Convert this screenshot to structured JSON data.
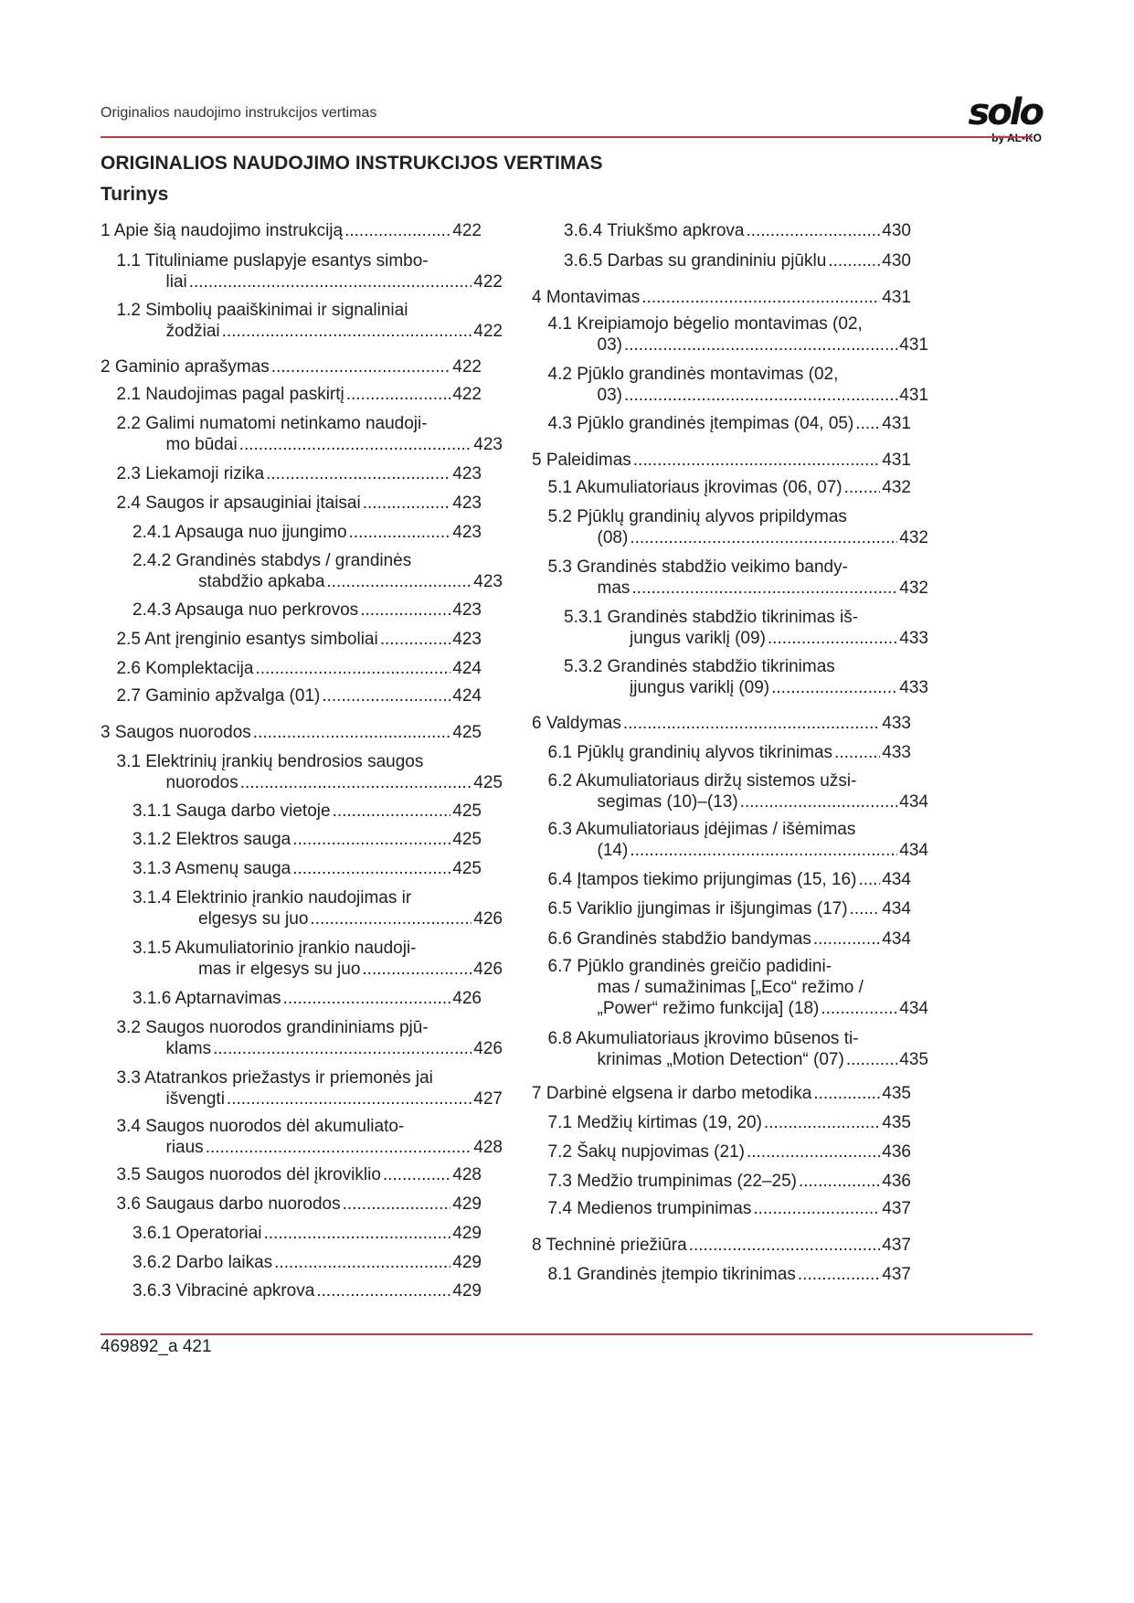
{
  "header": {
    "running_title": "Originalios naudojimo instrukcijos vertimas",
    "logo_text": "solo",
    "logo_subtext": "by AL-KO",
    "accent_color": "#c0394a"
  },
  "document": {
    "title": "ORIGINALIOS NAUDOJIMO INSTRUKCIJOS VERTIMAS",
    "toc_heading": "Turinys",
    "toc_left": [
      {
        "l1": "1 Apie šią naudojimo instrukciją",
        "page": "422"
      },
      {
        "l1": "1.1 Tituliniame puslapyje esantys simbo-",
        "l2": "liai",
        "page": "422"
      },
      {
        "l1": "1.2 Simbolių paaiškinimai ir signaliniai",
        "l2": "žodžiai",
        "page": "422"
      },
      {
        "l1": "2 Gaminio aprašymas",
        "page": "422"
      },
      {
        "l1": "2.1 Naudojimas pagal paskirtį",
        "page": "422"
      },
      {
        "l1": "2.2 Galimi numatomi netinkamo naudoji-",
        "l2": "mo būdai",
        "page": "423"
      },
      {
        "l1": "2.3 Liekamoji rizika",
        "page": "423"
      },
      {
        "l1": "2.4 Saugos ir apsauginiai įtaisai",
        "page": "423"
      },
      {
        "l1": "2.4.1 Apsauga nuo įjungimo",
        "page": "423"
      },
      {
        "l1": "2.4.2 Grandinės stabdys / grandinės",
        "l2": "stabdžio apkaba",
        "page": "423"
      },
      {
        "l1": "2.4.3 Apsauga nuo perkrovos",
        "page": "423"
      },
      {
        "l1": "2.5 Ant įrenginio esantys simboliai",
        "page": "423"
      },
      {
        "l1": "2.6 Komplektacija",
        "page": "424"
      },
      {
        "l1": "2.7 Gaminio apžvalga (01)",
        "page": "424"
      },
      {
        "l1": "3 Saugos nuorodos",
        "page": "425"
      },
      {
        "l1": "3.1 Elektrinių įrankių bendrosios saugos",
        "l2": "nuorodos",
        "page": "425"
      },
      {
        "l1": "3.1.1 Sauga darbo vietoje",
        "page": "425"
      },
      {
        "l1": "3.1.2 Elektros sauga",
        "page": "425"
      },
      {
        "l1": "3.1.3 Asmenų sauga",
        "page": "425"
      },
      {
        "l1": "3.1.4 Elektrinio įrankio naudojimas ir",
        "l2": "elgesys su juo",
        "page": "426"
      },
      {
        "l1": "3.1.5 Akumuliatorinio įrankio naudoji-",
        "l2": "mas ir elgesys su juo",
        "page": "426"
      },
      {
        "l1": "3.1.6 Aptarnavimas",
        "page": "426"
      },
      {
        "l1": "3.2 Saugos nuorodos grandininiams pjū-",
        "l2": "klams",
        "page": "426"
      },
      {
        "l1": "3.3 Atatrankos priežastys ir priemonės jai",
        "l2": "išvengti",
        "page": "427"
      },
      {
        "l1": "3.4 Saugos nuorodos dėl akumuliato-",
        "l2": "riaus",
        "page": "428"
      },
      {
        "l1": "3.5 Saugos nuorodos dėl įkroviklio",
        "page": "428"
      },
      {
        "l1": "3.6 Saugaus darbo nuorodos",
        "page": "429"
      },
      {
        "l1": "3.6.1 Operatoriai",
        "page": "429"
      },
      {
        "l1": "3.6.2 Darbo laikas",
        "page": "429"
      },
      {
        "l1": "3.6.3 Vibracinė apkrova",
        "page": "429"
      }
    ],
    "toc_right": [
      {
        "l1": "3.6.4 Triukšmo apkrova",
        "page": "430"
      },
      {
        "l1": "3.6.5 Darbas su grandininiu pjūklu",
        "page": "430"
      },
      {
        "l1": "4 Montavimas",
        "page": "431"
      },
      {
        "l1": "4.1 Kreipiamojo bėgelio montavimas (02,",
        "l2": "03)",
        "page": "431"
      },
      {
        "l1": "4.2 Pjūklo grandinės montavimas (02,",
        "l2": "03)",
        "page": "431"
      },
      {
        "l1": "4.3 Pjūklo grandinės įtempimas (04, 05)",
        "page": "431"
      },
      {
        "l1": "5 Paleidimas",
        "page": "431"
      },
      {
        "l1": "5.1 Akumuliatoriaus įkrovimas (06, 07)",
        "page": "432"
      },
      {
        "l1": "5.2 Pjūklų grandinių alyvos pripildymas",
        "l2": "(08)",
        "page": "432"
      },
      {
        "l1": "5.3 Grandinės stabdžio veikimo bandy-",
        "l2": "mas",
        "page": "432"
      },
      {
        "l1": "5.3.1 Grandinės stabdžio tikrinimas iš-",
        "l2": "jungus variklį (09)",
        "page": "433"
      },
      {
        "l1": "5.3.2 Grandinės stabdžio tikrinimas",
        "l2": "įjungus variklį (09)",
        "page": "433"
      },
      {
        "l1": "6 Valdymas",
        "page": "433"
      },
      {
        "l1": "6.1 Pjūklų grandinių alyvos tikrinimas",
        "page": "433"
      },
      {
        "l1": "6.2 Akumuliatoriaus diržų sistemos užsi-",
        "l2": "segimas (10)–(13)",
        "page": "434"
      },
      {
        "l1": "6.3 Akumuliatoriaus įdėjimas / išėmimas",
        "l2": "(14)",
        "page": "434"
      },
      {
        "l1": "6.4 Įtampos tiekimo prijungimas (15, 16)",
        "page": "434"
      },
      {
        "l1": "6.5 Variklio įjungimas ir išjungimas (17)",
        "page": "434"
      },
      {
        "l1": "6.6 Grandinės stabdžio bandymas",
        "page": "434"
      },
      {
        "l1": "6.7 Pjūklo grandinės greičio padidini-",
        "l1b": "mas / sumažinimas [„Eco“ režimo /",
        "l2": "„Power“ režimo funkcija] (18)",
        "page": "434"
      },
      {
        "l1": "6.8 Akumuliatoriaus įkrovimo būsenos ti-",
        "l2": "krinimas „Motion Detection“ (07)",
        "page": "435"
      },
      {
        "l1": "7 Darbinė elgsena ir darbo metodika",
        "page": "435"
      },
      {
        "l1": "7.1 Medžių kirtimas (19, 20)",
        "page": "435"
      },
      {
        "l1": "7.2 Šakų nupjovimas (21)",
        "page": "436"
      },
      {
        "l1": "7.3 Medžio trumpinimas (22–25)",
        "page": "436"
      },
      {
        "l1": "7.4 Medienos trumpinimas",
        "page": "437"
      },
      {
        "l1": "8 Techninė priežiūra",
        "page": "437"
      },
      {
        "l1": "8.1 Grandinės įtempio tikrinimas",
        "page": "437"
      }
    ]
  },
  "footer": {
    "doc_number_page": "469892_a 421"
  }
}
